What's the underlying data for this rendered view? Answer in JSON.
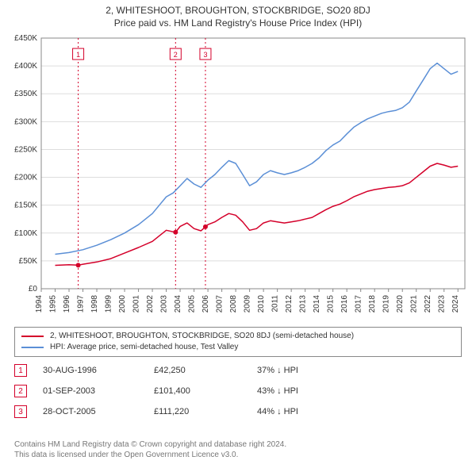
{
  "title": "2, WHITESHOOT, BROUGHTON, STOCKBRIDGE, SO20 8DJ",
  "subtitle": "Price paid vs. HM Land Registry's House Price Index (HPI)",
  "chart": {
    "type": "line",
    "background_color": "#ffffff",
    "grid_color": "#dddddd",
    "axis_color": "#888888",
    "text_color": "#333333",
    "label_fontsize": 10,
    "x": {
      "min": 1994,
      "max": 2024.5,
      "ticks": [
        1994,
        1995,
        1996,
        1997,
        1998,
        1999,
        2000,
        2001,
        2002,
        2003,
        2004,
        2005,
        2006,
        2007,
        2008,
        2009,
        2010,
        2011,
        2012,
        2013,
        2014,
        2015,
        2016,
        2017,
        2018,
        2019,
        2020,
        2021,
        2022,
        2023,
        2024
      ],
      "tick_labels": [
        "1994",
        "1995",
        "1996",
        "1997",
        "1998",
        "1999",
        "2000",
        "2001",
        "2002",
        "2003",
        "2004",
        "2005",
        "2006",
        "2007",
        "2008",
        "2009",
        "2010",
        "2011",
        "2012",
        "2013",
        "2014",
        "2015",
        "2016",
        "2017",
        "2018",
        "2019",
        "2020",
        "2021",
        "2022",
        "2023",
        "2024"
      ]
    },
    "y": {
      "min": 0,
      "max": 450000,
      "ticks": [
        0,
        50000,
        100000,
        150000,
        200000,
        250000,
        300000,
        350000,
        400000,
        450000
      ],
      "tick_labels": [
        "£0",
        "£50K",
        "£100K",
        "£150K",
        "£200K",
        "£250K",
        "£300K",
        "£350K",
        "£400K",
        "£450K"
      ]
    },
    "series": [
      {
        "name": "price_paid",
        "label": "2, WHITESHOOT, BROUGHTON, STOCKBRIDGE, SO20 8DJ (semi-detached house)",
        "color": "#d4002a",
        "line_width": 1.5,
        "points": [
          [
            1995.0,
            42000
          ],
          [
            1996.0,
            43000
          ],
          [
            1996.66,
            42250
          ],
          [
            1997.0,
            44000
          ],
          [
            1998.0,
            48000
          ],
          [
            1999.0,
            54000
          ],
          [
            2000.0,
            64000
          ],
          [
            2001.0,
            74000
          ],
          [
            2002.0,
            85000
          ],
          [
            2002.5,
            95000
          ],
          [
            2003.0,
            105000
          ],
          [
            2003.67,
            101400
          ],
          [
            2004.0,
            112000
          ],
          [
            2004.5,
            118000
          ],
          [
            2005.0,
            108000
          ],
          [
            2005.5,
            104000
          ],
          [
            2005.82,
            111220
          ],
          [
            2006.0,
            115000
          ],
          [
            2006.5,
            120000
          ],
          [
            2007.0,
            128000
          ],
          [
            2007.5,
            135000
          ],
          [
            2008.0,
            132000
          ],
          [
            2008.5,
            120000
          ],
          [
            2009.0,
            105000
          ],
          [
            2009.5,
            108000
          ],
          [
            2010.0,
            118000
          ],
          [
            2010.5,
            122000
          ],
          [
            2011.0,
            120000
          ],
          [
            2011.5,
            118000
          ],
          [
            2012.0,
            120000
          ],
          [
            2012.5,
            122000
          ],
          [
            2013.0,
            125000
          ],
          [
            2013.5,
            128000
          ],
          [
            2014.0,
            135000
          ],
          [
            2014.5,
            142000
          ],
          [
            2015.0,
            148000
          ],
          [
            2015.5,
            152000
          ],
          [
            2016.0,
            158000
          ],
          [
            2016.5,
            165000
          ],
          [
            2017.0,
            170000
          ],
          [
            2017.5,
            175000
          ],
          [
            2018.0,
            178000
          ],
          [
            2018.5,
            180000
          ],
          [
            2019.0,
            182000
          ],
          [
            2019.5,
            183000
          ],
          [
            2020.0,
            185000
          ],
          [
            2020.5,
            190000
          ],
          [
            2021.0,
            200000
          ],
          [
            2021.5,
            210000
          ],
          [
            2022.0,
            220000
          ],
          [
            2022.5,
            225000
          ],
          [
            2023.0,
            222000
          ],
          [
            2023.5,
            218000
          ],
          [
            2024.0,
            220000
          ]
        ]
      },
      {
        "name": "hpi",
        "label": "HPI: Average price, semi-detached house, Test Valley",
        "color": "#5b8fd6",
        "line_width": 1.5,
        "points": [
          [
            1995.0,
            62000
          ],
          [
            1996.0,
            65000
          ],
          [
            1997.0,
            70000
          ],
          [
            1998.0,
            78000
          ],
          [
            1999.0,
            88000
          ],
          [
            2000.0,
            100000
          ],
          [
            2001.0,
            115000
          ],
          [
            2002.0,
            135000
          ],
          [
            2002.5,
            150000
          ],
          [
            2003.0,
            165000
          ],
          [
            2003.5,
            172000
          ],
          [
            2004.0,
            185000
          ],
          [
            2004.5,
            198000
          ],
          [
            2005.0,
            188000
          ],
          [
            2005.5,
            182000
          ],
          [
            2006.0,
            195000
          ],
          [
            2006.5,
            205000
          ],
          [
            2007.0,
            218000
          ],
          [
            2007.5,
            230000
          ],
          [
            2008.0,
            225000
          ],
          [
            2008.5,
            205000
          ],
          [
            2009.0,
            185000
          ],
          [
            2009.5,
            192000
          ],
          [
            2010.0,
            205000
          ],
          [
            2010.5,
            212000
          ],
          [
            2011.0,
            208000
          ],
          [
            2011.5,
            205000
          ],
          [
            2012.0,
            208000
          ],
          [
            2012.5,
            212000
          ],
          [
            2013.0,
            218000
          ],
          [
            2013.5,
            225000
          ],
          [
            2014.0,
            235000
          ],
          [
            2014.5,
            248000
          ],
          [
            2015.0,
            258000
          ],
          [
            2015.5,
            265000
          ],
          [
            2016.0,
            278000
          ],
          [
            2016.5,
            290000
          ],
          [
            2017.0,
            298000
          ],
          [
            2017.5,
            305000
          ],
          [
            2018.0,
            310000
          ],
          [
            2018.5,
            315000
          ],
          [
            2019.0,
            318000
          ],
          [
            2019.5,
            320000
          ],
          [
            2020.0,
            325000
          ],
          [
            2020.5,
            335000
          ],
          [
            2021.0,
            355000
          ],
          [
            2021.5,
            375000
          ],
          [
            2022.0,
            395000
          ],
          [
            2022.5,
            405000
          ],
          [
            2023.0,
            395000
          ],
          [
            2023.5,
            385000
          ],
          [
            2024.0,
            390000
          ]
        ]
      }
    ],
    "markers": [
      {
        "n": "1",
        "x": 1996.66,
        "y": 42250,
        "color": "#d4002a"
      },
      {
        "n": "2",
        "x": 2003.67,
        "y": 101400,
        "color": "#d4002a"
      },
      {
        "n": "3",
        "x": 2005.82,
        "y": 111220,
        "color": "#d4002a"
      }
    ],
    "marker_line_dash": "2,3",
    "marker_box_top_y": 420000
  },
  "legend": {
    "items": [
      {
        "color": "#d4002a",
        "label": "2, WHITESHOOT, BROUGHTON, STOCKBRIDGE, SO20 8DJ (semi-detached house)"
      },
      {
        "color": "#5b8fd6",
        "label": "HPI: Average price, semi-detached house, Test Valley"
      }
    ]
  },
  "marker_rows": [
    {
      "n": "1",
      "color": "#d4002a",
      "date": "30-AUG-1996",
      "price": "£42,250",
      "delta": "37% ↓ HPI"
    },
    {
      "n": "2",
      "color": "#d4002a",
      "date": "01-SEP-2003",
      "price": "£101,400",
      "delta": "43% ↓ HPI"
    },
    {
      "n": "3",
      "color": "#d4002a",
      "date": "28-OCT-2005",
      "price": "£111,220",
      "delta": "44% ↓ HPI"
    }
  ],
  "footer": {
    "line1": "Contains HM Land Registry data © Crown copyright and database right 2024.",
    "line2": "This data is licensed under the Open Government Licence v3.0."
  }
}
